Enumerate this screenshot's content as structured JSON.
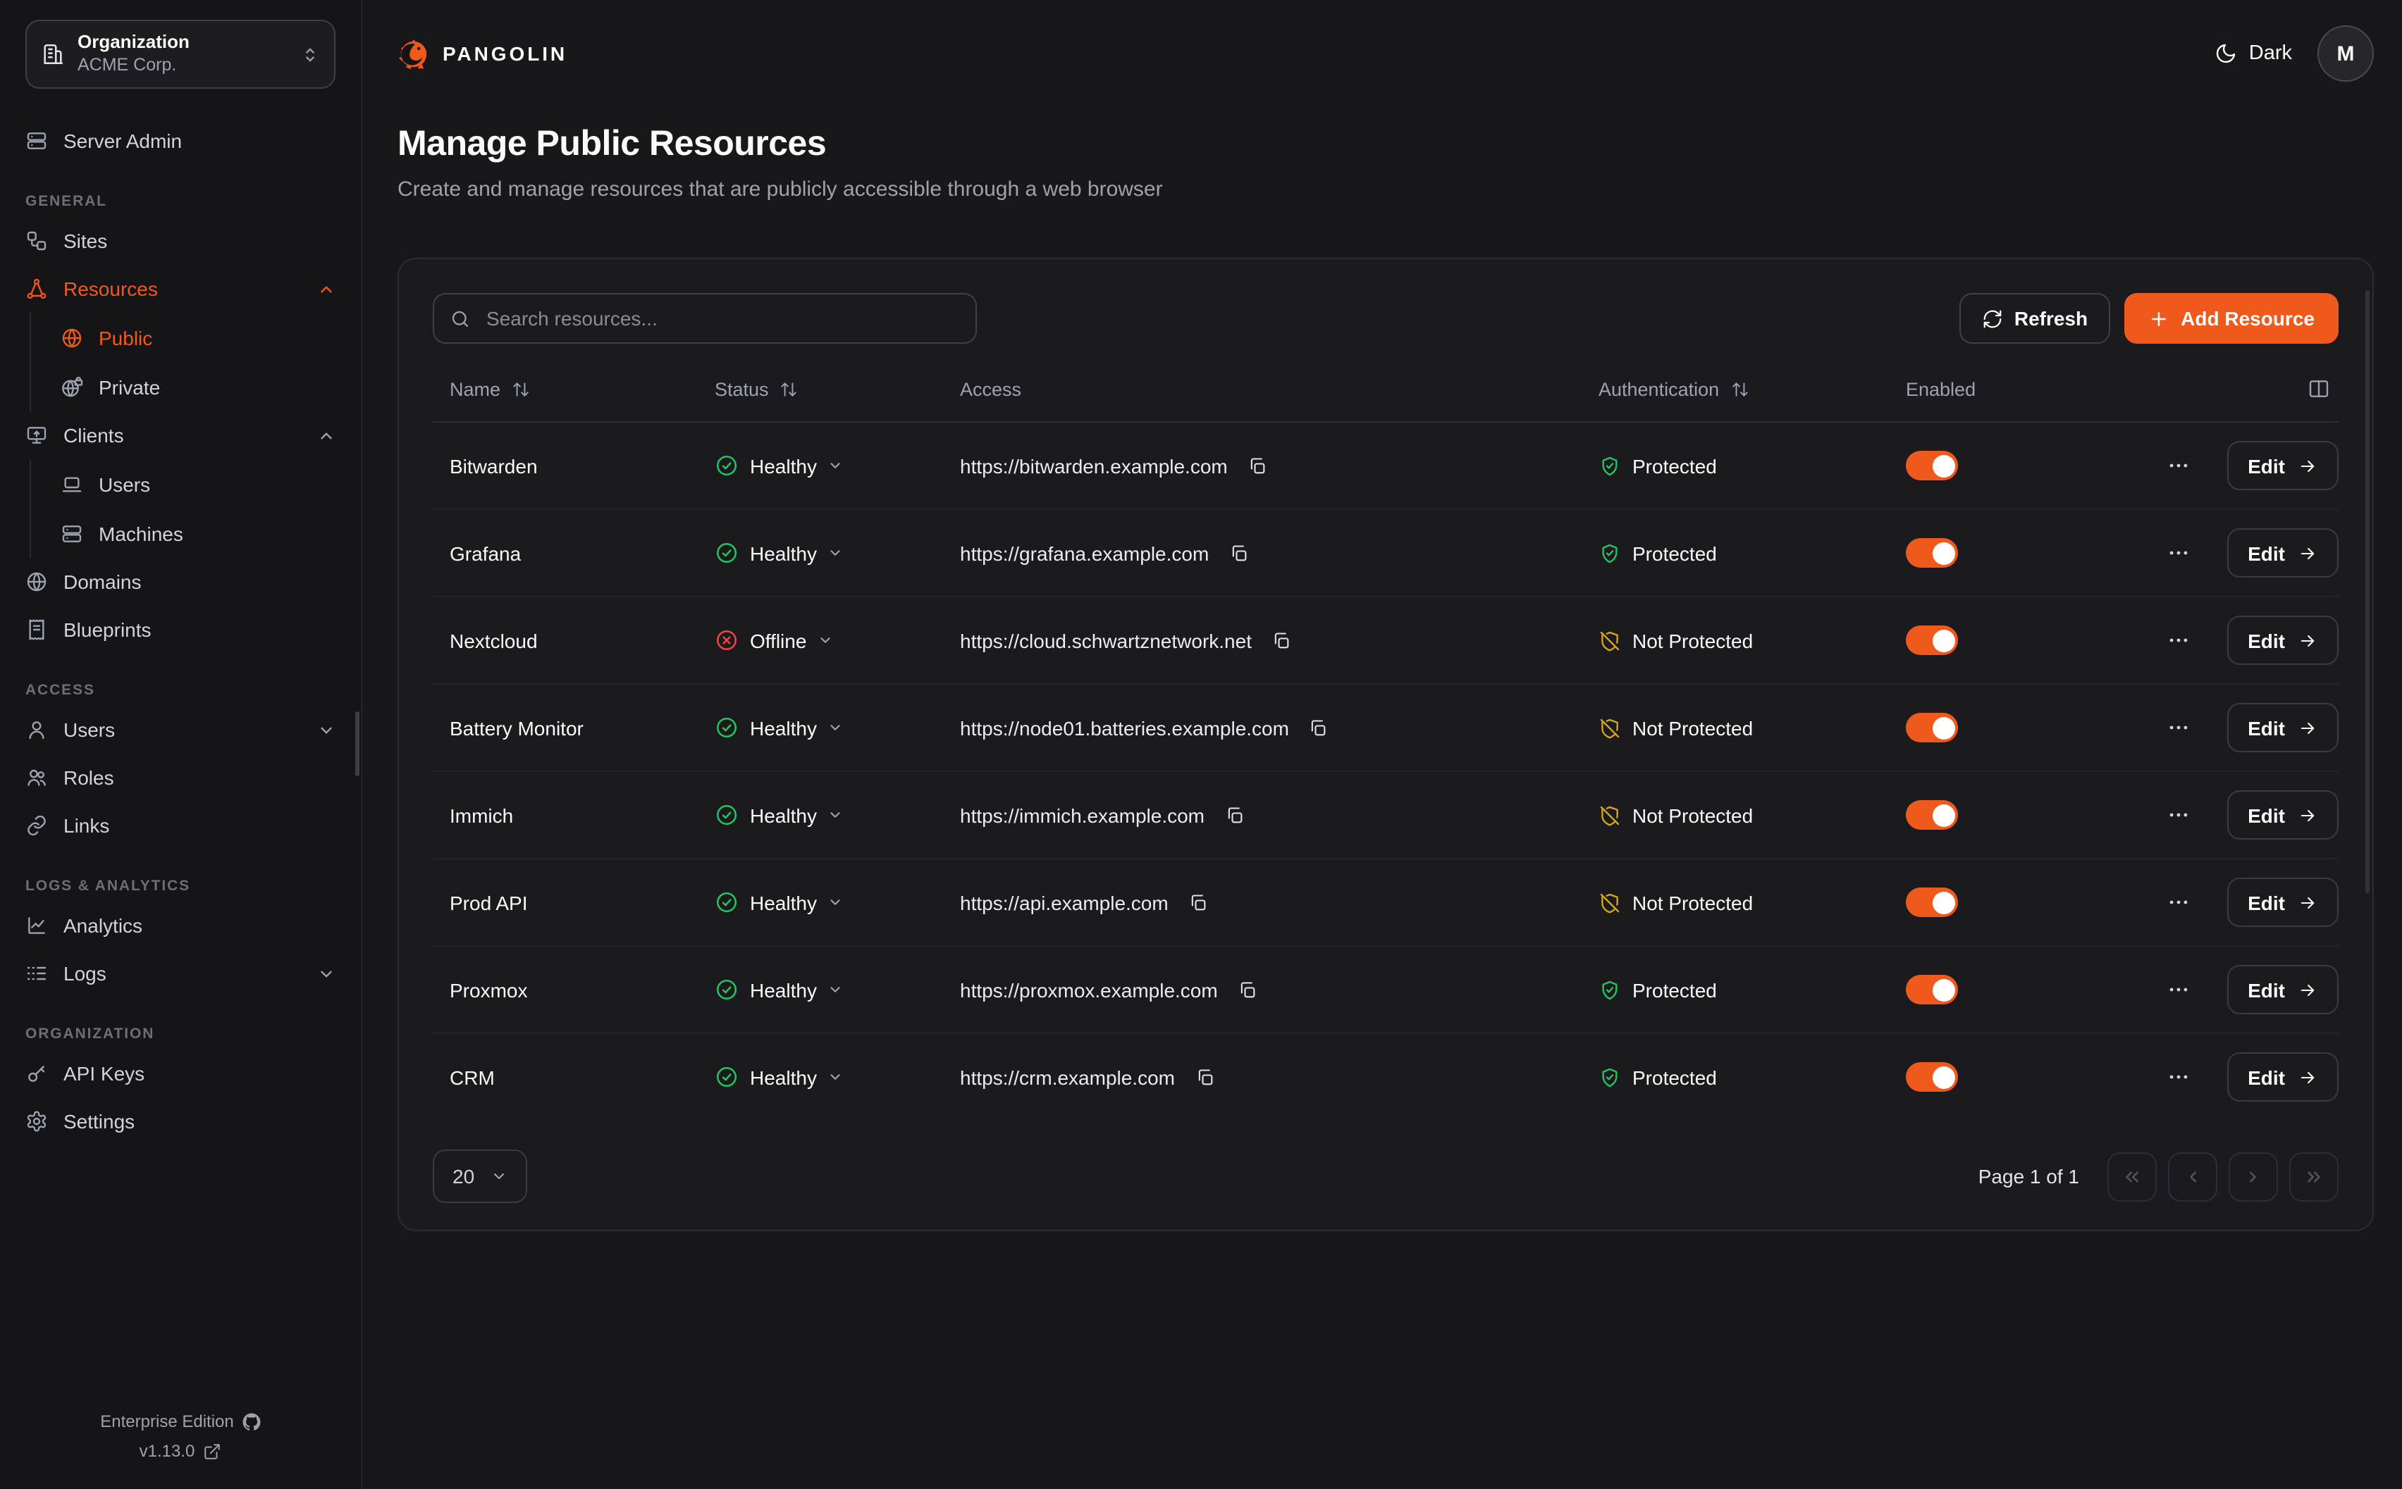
{
  "colors": {
    "accent": "#f0591c",
    "healthy_green": "#22c55e",
    "offline_red": "#ef4444",
    "warning_amber": "#d9a50f"
  },
  "sidebar": {
    "org_switcher": {
      "title": "Organization",
      "org_name": "ACME Corp."
    },
    "server_admin": "Server Admin",
    "general_label": "GENERAL",
    "sites": "Sites",
    "resources": "Resources",
    "public": "Public",
    "private": "Private",
    "clients": "Clients",
    "client_users": "Users",
    "machines": "Machines",
    "domains": "Domains",
    "blueprints": "Blueprints",
    "access_label": "ACCESS",
    "users": "Users",
    "roles": "Roles",
    "links": "Links",
    "logs_label": "LOGS & ANALYTICS",
    "analytics": "Analytics",
    "logs": "Logs",
    "organization_label": "ORGANIZATION",
    "api_keys": "API Keys",
    "settings": "Settings",
    "edition": "Enterprise Edition",
    "version": "v1.13.0"
  },
  "header": {
    "brand": "PANGOLIN",
    "theme_label": "Dark",
    "avatar_initial": "M"
  },
  "page": {
    "title": "Manage Public Resources",
    "subtitle": "Create and manage resources that are publicly accessible through a web browser"
  },
  "toolbar": {
    "search_placeholder": "Search resources...",
    "refresh_label": "Refresh",
    "add_label": "Add Resource"
  },
  "table": {
    "headers": [
      {
        "label": "Name",
        "sortable": true
      },
      {
        "label": "Status",
        "sortable": true
      },
      {
        "label": "Access",
        "sortable": false
      },
      {
        "label": "Authentication",
        "sortable": true
      },
      {
        "label": "Enabled",
        "sortable": false
      }
    ],
    "edit_label": "Edit",
    "rows": [
      {
        "name": "Bitwarden",
        "status": "Healthy",
        "access": "https://bitwarden.example.com",
        "authentication": "Protected",
        "enabled": true
      },
      {
        "name": "Grafana",
        "status": "Healthy",
        "access": "https://grafana.example.com",
        "authentication": "Protected",
        "enabled": true
      },
      {
        "name": "Nextcloud",
        "status": "Offline",
        "access": "https://cloud.schwartznetwork.net",
        "authentication": "Not Protected",
        "enabled": true
      },
      {
        "name": "Battery Monitor",
        "status": "Healthy",
        "access": "https://node01.batteries.example.com",
        "authentication": "Not Protected",
        "enabled": true
      },
      {
        "name": "Immich",
        "status": "Healthy",
        "access": "https://immich.example.com",
        "authentication": "Not Protected",
        "enabled": true
      },
      {
        "name": "Prod API",
        "status": "Healthy",
        "access": "https://api.example.com",
        "authentication": "Not Protected",
        "enabled": true
      },
      {
        "name": "Proxmox",
        "status": "Healthy",
        "access": "https://proxmox.example.com",
        "authentication": "Protected",
        "enabled": true
      },
      {
        "name": "CRM",
        "status": "Healthy",
        "access": "https://crm.example.com",
        "authentication": "Protected",
        "enabled": true
      }
    ]
  },
  "footer": {
    "page_size": "20",
    "page_info": "Page 1 of 1"
  }
}
